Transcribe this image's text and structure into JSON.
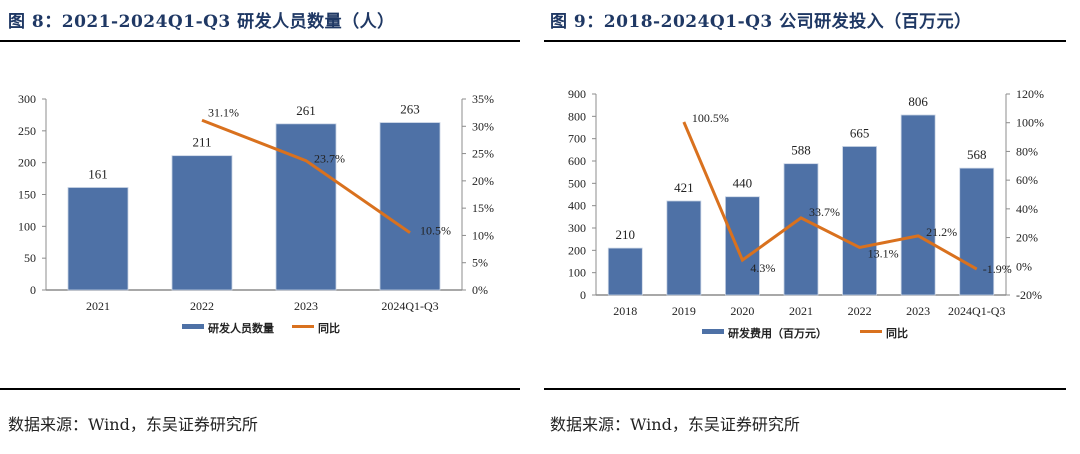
{
  "colors": {
    "bar": "#4e71a6",
    "line": "#d9711e",
    "axis": "#8c8c8c",
    "title": "#1f3864"
  },
  "figures": [
    {
      "title": "图 8：2021-2024Q1-Q3 研发人员数量（人）",
      "source": "数据来源：Wind，东吴证券研究所"
    },
    {
      "title": "图 9：2018-2024Q1-Q3 公司研发投入（百万元）",
      "source": "数据来源：Wind，东吴证券研究所"
    }
  ],
  "chart_data": [
    {
      "type": "bar",
      "title": "2021-2024Q1-Q3 研发人员数量（人）",
      "categories": [
        "2021",
        "2022",
        "2023",
        "2024Q1-Q3"
      ],
      "series": [
        {
          "name": "研发人员数量",
          "type": "bar",
          "axis": "left",
          "values": [
            161,
            211,
            261,
            263
          ],
          "labels": [
            "161",
            "211",
            "261",
            "263"
          ]
        },
        {
          "name": "同比",
          "type": "line",
          "axis": "right",
          "values": [
            null,
            31.1,
            23.7,
            10.5
          ],
          "labels": [
            "",
            "31.1%",
            "23.7%",
            "10.5%"
          ]
        }
      ],
      "left_axis": {
        "ylim": [
          0,
          300
        ],
        "ticks": [
          "0",
          "50",
          "100",
          "150",
          "200",
          "250",
          "300"
        ]
      },
      "right_axis": {
        "ylim": [
          0,
          35
        ],
        "ticks": [
          "0%",
          "5%",
          "10%",
          "15%",
          "20%",
          "25%",
          "30%",
          "35%"
        ]
      },
      "legend": {
        "position": "bottom",
        "items": [
          "研发人员数量",
          "同比"
        ]
      },
      "grid": false
    },
    {
      "type": "bar",
      "title": "2018-2024Q1-Q3 公司研发投入（百万元）",
      "categories": [
        "2018",
        "2019",
        "2020",
        "2021",
        "2022",
        "2023",
        "2024Q1-Q3"
      ],
      "series": [
        {
          "name": "研发费用（百万元）",
          "type": "bar",
          "axis": "left",
          "values": [
            210,
            421,
            440,
            588,
            665,
            806,
            568
          ],
          "labels": [
            "210",
            "421",
            "440",
            "588",
            "665",
            "806",
            "568"
          ]
        },
        {
          "name": "同比",
          "type": "line",
          "axis": "right",
          "values": [
            null,
            100.5,
            4.3,
            33.7,
            13.1,
            21.2,
            -1.9
          ],
          "labels": [
            "",
            "100.5%",
            "4.3%",
            "33.7%",
            "13.1%",
            "21.2%",
            "-1.9%"
          ]
        }
      ],
      "left_axis": {
        "ylim": [
          0,
          900
        ],
        "ticks": [
          "0",
          "100",
          "200",
          "300",
          "400",
          "500",
          "600",
          "700",
          "800",
          "900"
        ]
      },
      "right_axis": {
        "ylim": [
          -20,
          120
        ],
        "ticks": [
          "-20%",
          "0%",
          "20%",
          "40%",
          "60%",
          "80%",
          "100%",
          "120%"
        ]
      },
      "legend": {
        "position": "bottom",
        "items": [
          "研发费用（百万元）",
          "同比"
        ]
      },
      "grid": false
    }
  ]
}
